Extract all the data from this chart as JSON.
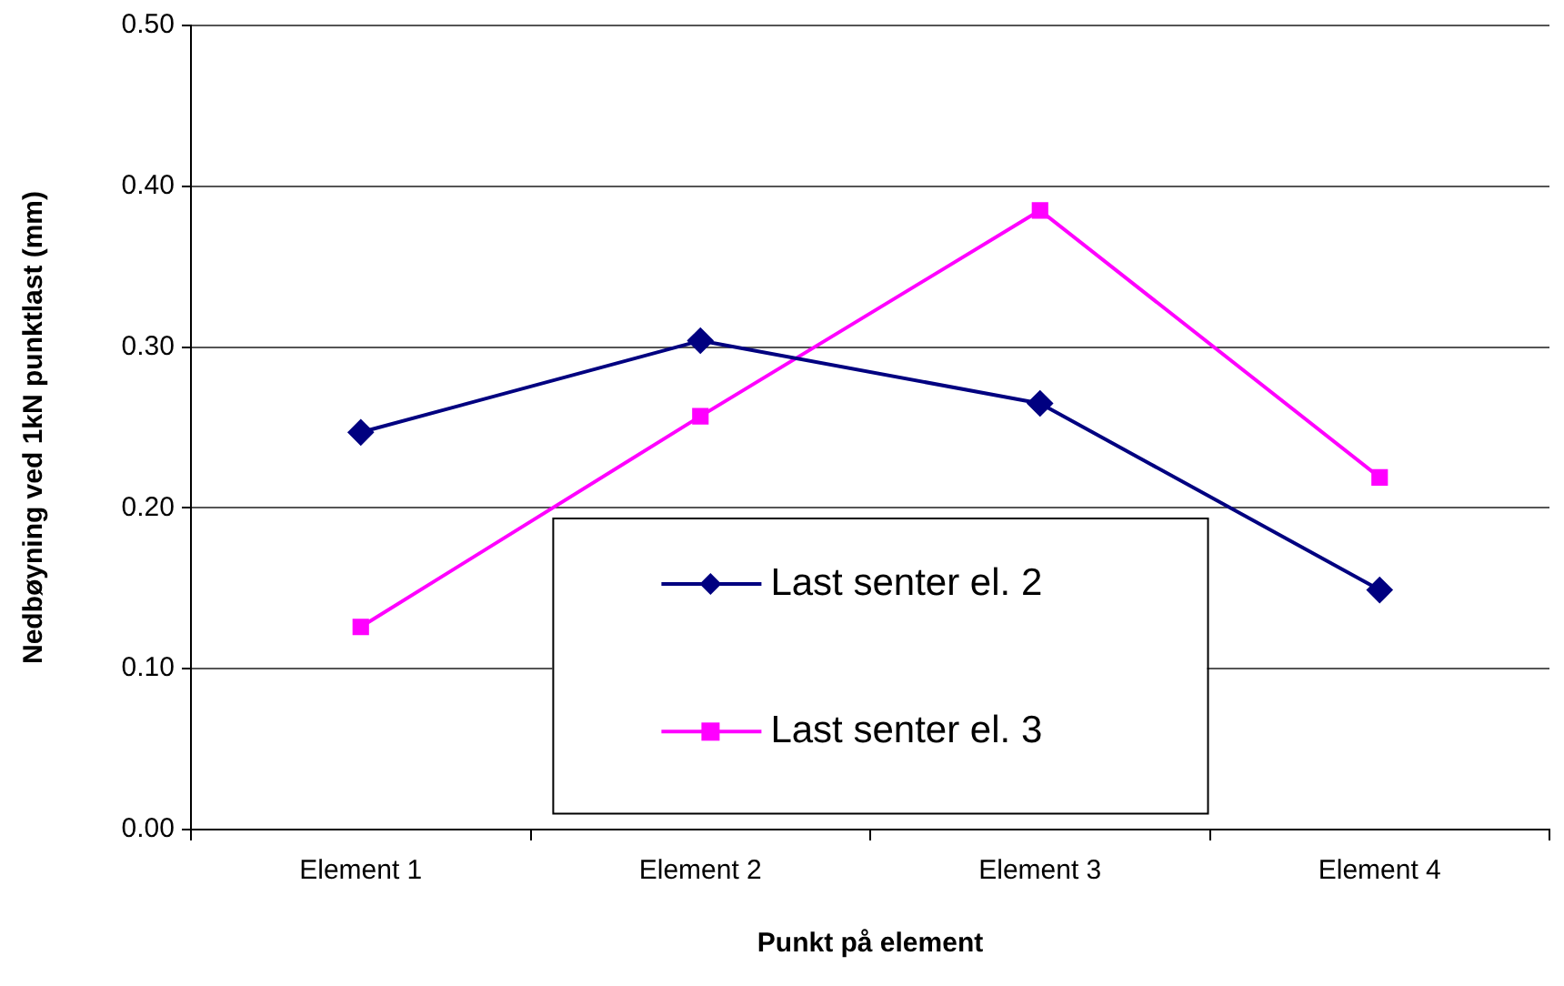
{
  "chart_data": {
    "type": "line",
    "xlabel": "Punkt på element",
    "ylabel": "Nedbøyning ved 1kN punktlast (mm)",
    "categories": [
      "Element 1",
      "Element 2",
      "Element 3",
      "Element 4"
    ],
    "series": [
      {
        "name": "Last senter el. 2",
        "color": "#000080",
        "marker": "diamond",
        "values": [
          0.247,
          0.304,
          0.265,
          0.149
        ]
      },
      {
        "name": "Last senter el. 3",
        "color": "#ff00ff",
        "marker": "square",
        "values": [
          0.126,
          0.257,
          0.385,
          0.219
        ]
      }
    ],
    "ylim": [
      0,
      0.5
    ],
    "yticks": [
      {
        "value": 0,
        "label": "0.00"
      },
      {
        "value": 0.1,
        "label": "0.10"
      },
      {
        "value": 0.2,
        "label": "0.20"
      },
      {
        "value": 0.3,
        "label": "0.30"
      },
      {
        "value": 0.4,
        "label": "0.40"
      },
      {
        "value": 0.5,
        "label": "0.50"
      }
    ],
    "grid": "y",
    "legend": "bottom",
    "line_style": "solid"
  }
}
